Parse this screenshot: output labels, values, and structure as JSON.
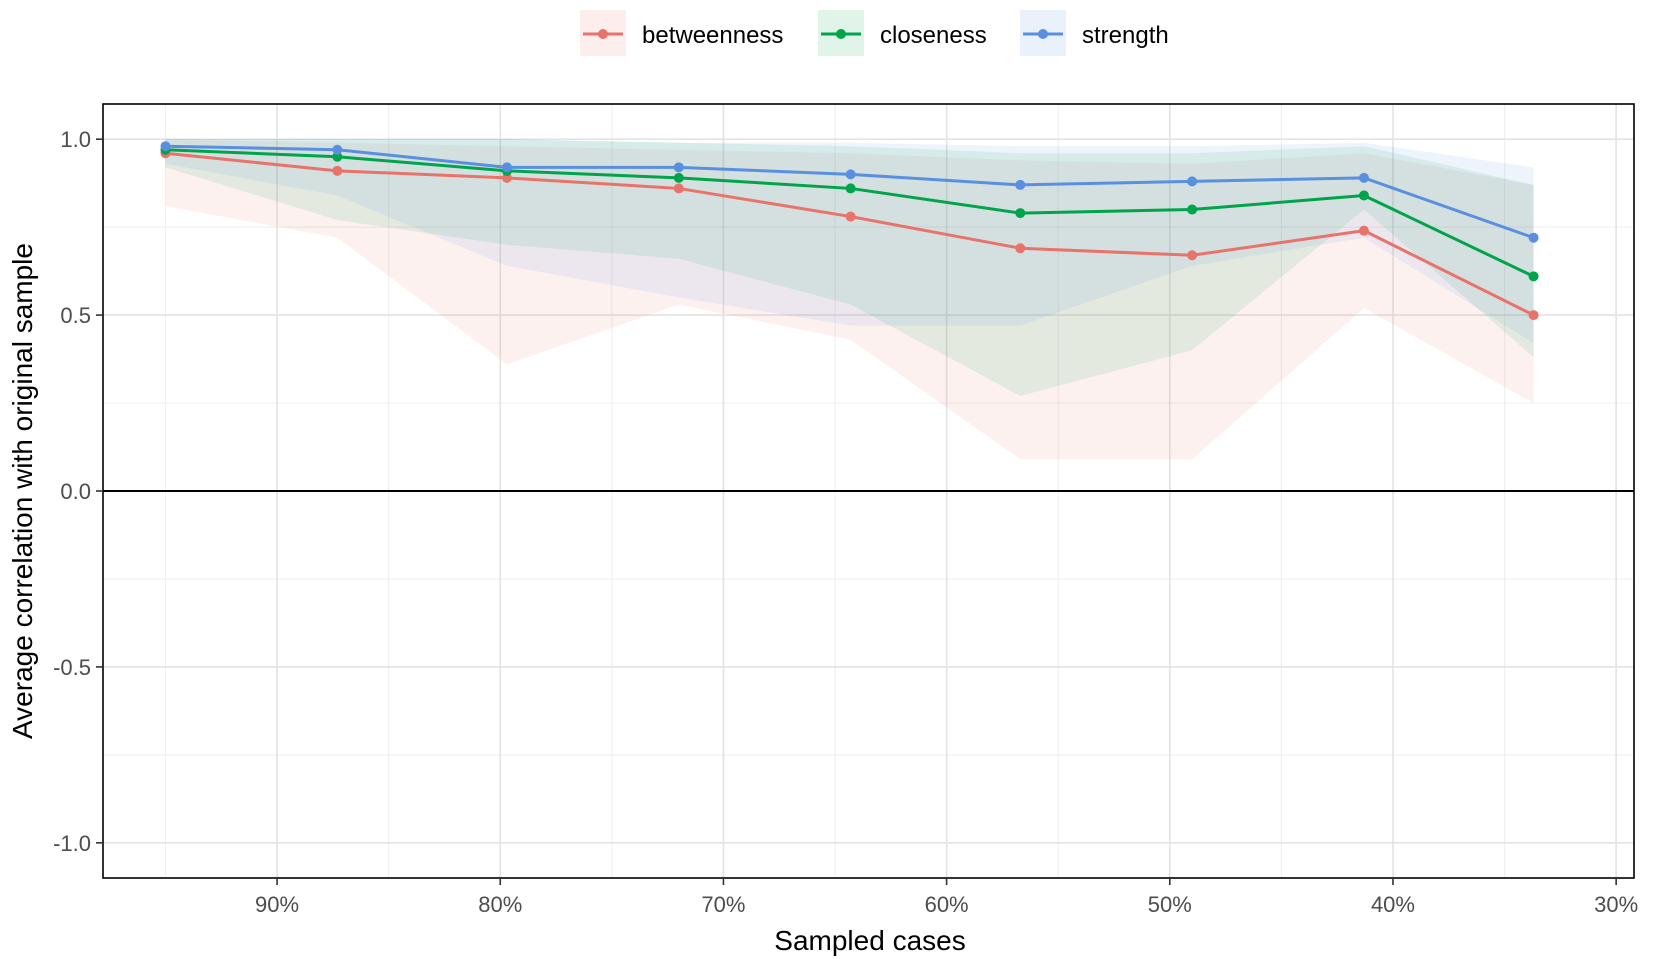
{
  "chart_data": {
    "type": "line",
    "xlabel": "Sampled cases",
    "ylabel": "Average correlation with original sample",
    "x_axis": {
      "reversed": true,
      "range": [
        0.292,
        0.978
      ],
      "ticks": [
        0.9,
        0.8,
        0.7,
        0.6,
        0.5,
        0.4,
        0.3
      ],
      "tick_labels": [
        "90%",
        "80%",
        "70%",
        "60%",
        "50%",
        "40%",
        "30%"
      ],
      "minor_ticks": [
        0.95,
        0.85,
        0.75,
        0.65,
        0.55,
        0.45,
        0.35
      ]
    },
    "y_axis": {
      "range": [
        -1.1,
        1.1
      ],
      "ticks": [
        -1.0,
        -0.5,
        0.0,
        0.5,
        1.0
      ],
      "tick_labels": [
        "-1.0",
        "-0.5",
        "0.0",
        "0.5",
        "1.0"
      ],
      "minor_ticks": [
        -0.75,
        -0.25,
        0.25,
        0.75
      ]
    },
    "zero_line": 0,
    "grid": true,
    "legend_position": "top",
    "x": [
      0.95,
      0.873,
      0.797,
      0.72,
      0.643,
      0.567,
      0.49,
      0.413,
      0.337
    ],
    "series": [
      {
        "name": "betweenness",
        "color": "#E8736B",
        "values": [
          0.96,
          0.91,
          0.89,
          0.86,
          0.78,
          0.69,
          0.67,
          0.74,
          0.5
        ],
        "lower": [
          0.81,
          0.72,
          0.36,
          0.53,
          0.43,
          0.09,
          0.09,
          0.52,
          0.25
        ],
        "upper": [
          1.0,
          0.99,
          0.98,
          0.97,
          0.96,
          0.94,
          0.93,
          0.96,
          0.87
        ]
      },
      {
        "name": "closeness",
        "color": "#00A44A",
        "values": [
          0.97,
          0.95,
          0.91,
          0.89,
          0.86,
          0.79,
          0.8,
          0.84,
          0.61
        ],
        "lower": [
          0.92,
          0.77,
          0.7,
          0.66,
          0.53,
          0.27,
          0.4,
          0.8,
          0.38
        ],
        "upper": [
          1.0,
          1.0,
          1.0,
          0.99,
          0.98,
          0.96,
          0.96,
          0.98,
          0.87
        ]
      },
      {
        "name": "strength",
        "color": "#5A8FE0",
        "values": [
          0.98,
          0.97,
          0.92,
          0.92,
          0.9,
          0.87,
          0.88,
          0.89,
          0.72
        ],
        "lower": [
          0.93,
          0.84,
          0.64,
          0.55,
          0.47,
          0.47,
          0.64,
          0.72,
          0.42
        ],
        "upper": [
          1.0,
          1.0,
          1.0,
          0.99,
          0.99,
          0.98,
          0.98,
          0.99,
          0.92
        ]
      }
    ]
  }
}
